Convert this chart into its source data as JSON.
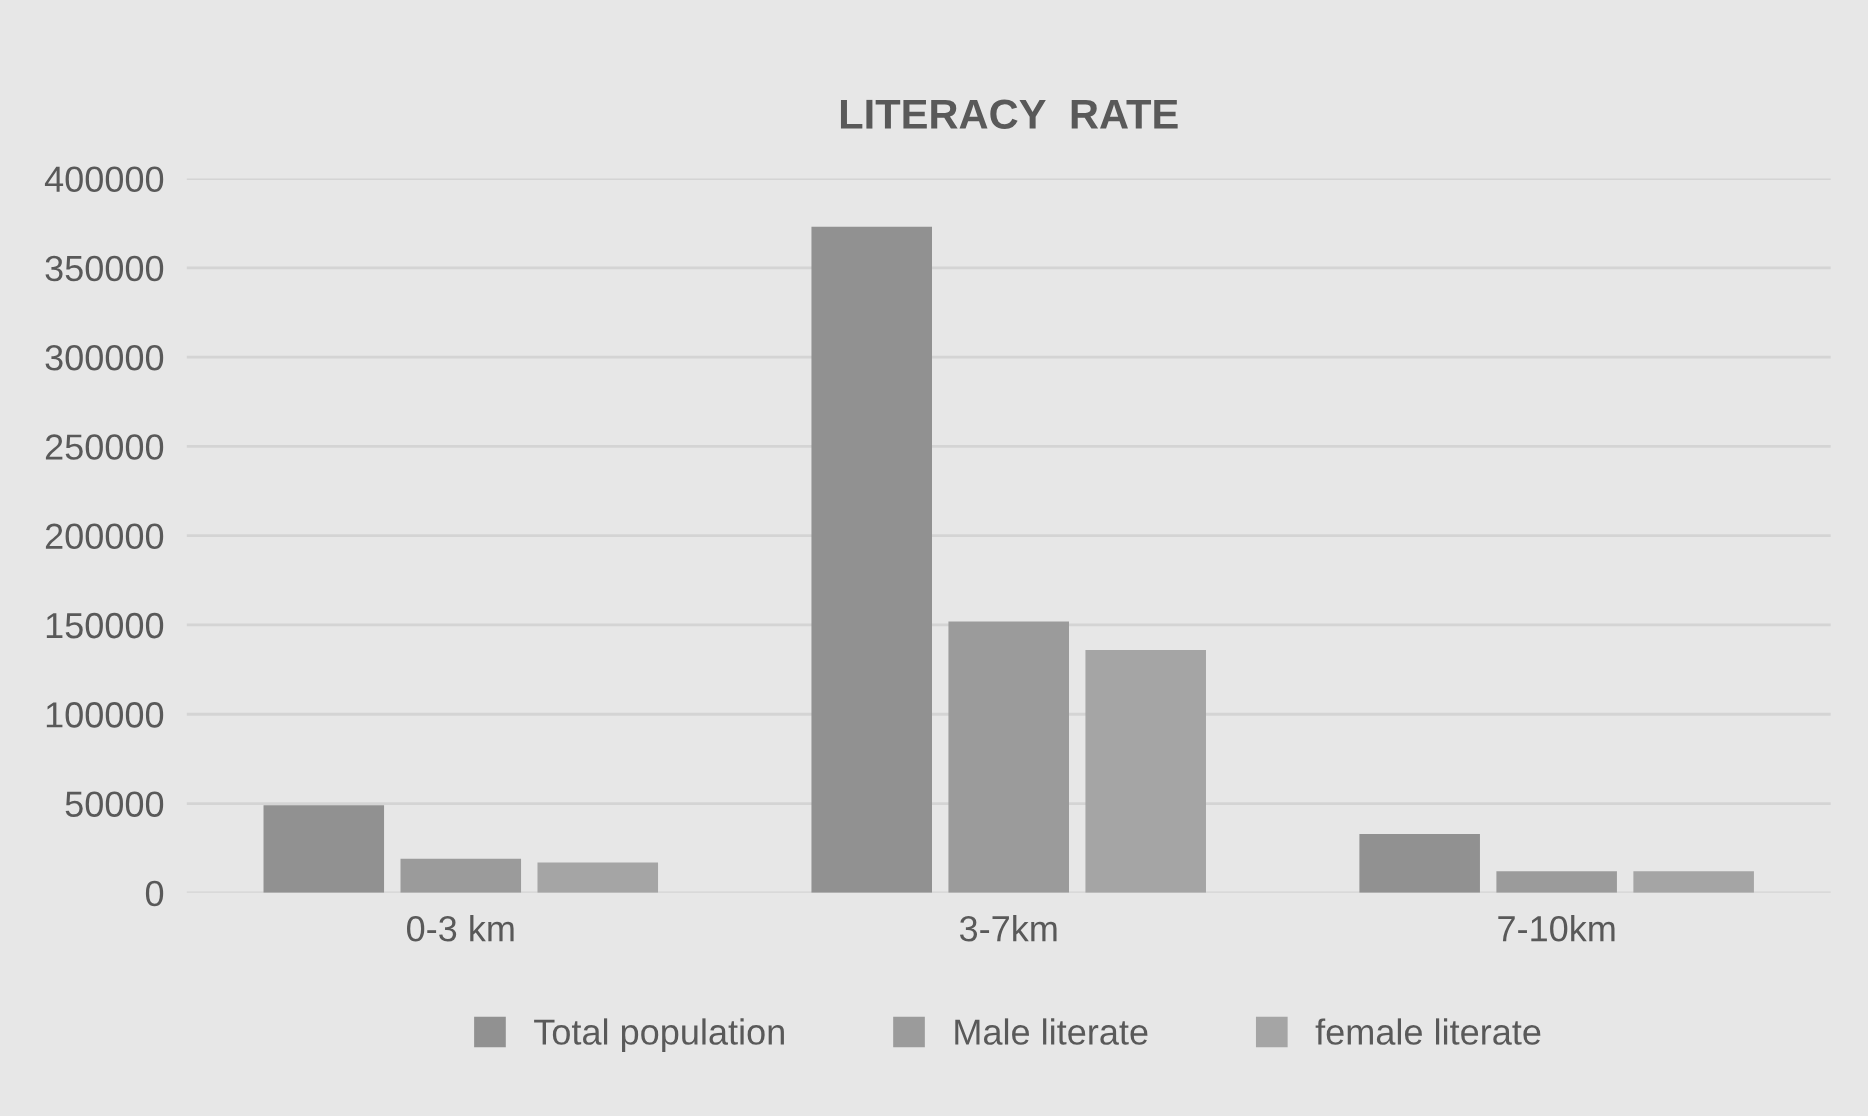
{
  "chart_data": {
    "type": "bar",
    "title": "LITERACY  RATE",
    "categories": [
      "0-3 km",
      "3-7km",
      "7-10km"
    ],
    "series": [
      {
        "name": "Total population",
        "color": "#919191",
        "values": [
          49000,
          373000,
          33000
        ]
      },
      {
        "name": "Male literate",
        "color": "#9b9b9b",
        "values": [
          19000,
          152000,
          12000
        ]
      },
      {
        "name": "female literate",
        "color": "#a5a5a5",
        "values": [
          17000,
          136000,
          12000
        ]
      }
    ],
    "ylim": [
      0,
      400000
    ],
    "yticks": [
      0,
      50000,
      100000,
      150000,
      200000,
      250000,
      300000,
      350000,
      400000
    ],
    "grid": "y",
    "legend": "bottom"
  }
}
